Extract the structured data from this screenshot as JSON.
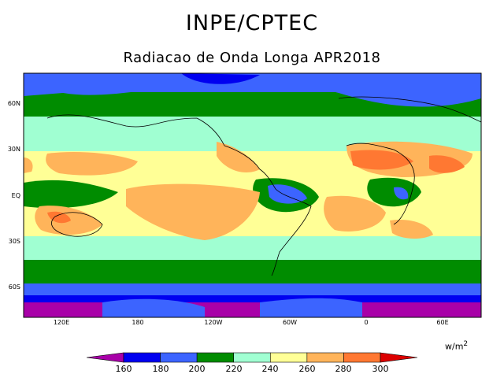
{
  "header": {
    "title": "INPE/CPTEC",
    "subtitle": "Radiacao de Onda Longa APR2018"
  },
  "map": {
    "lat_ticks": [
      "60N",
      "30N",
      "EQ",
      "30S",
      "60S"
    ],
    "lon_ticks": [
      "120E",
      "180",
      "120W",
      "60W",
      "0",
      "60E"
    ]
  },
  "legend": {
    "unit": "w/m",
    "unit_exp": "2",
    "levels": [
      "160",
      "180",
      "200",
      "220",
      "240",
      "260",
      "280",
      "300"
    ],
    "colors": [
      "#a800a8",
      "#0000f0",
      "#3c64ff",
      "#008c00",
      "#a0ffd2",
      "#ffff96",
      "#ffb45a",
      "#ff7832",
      "#dc0000"
    ]
  }
}
